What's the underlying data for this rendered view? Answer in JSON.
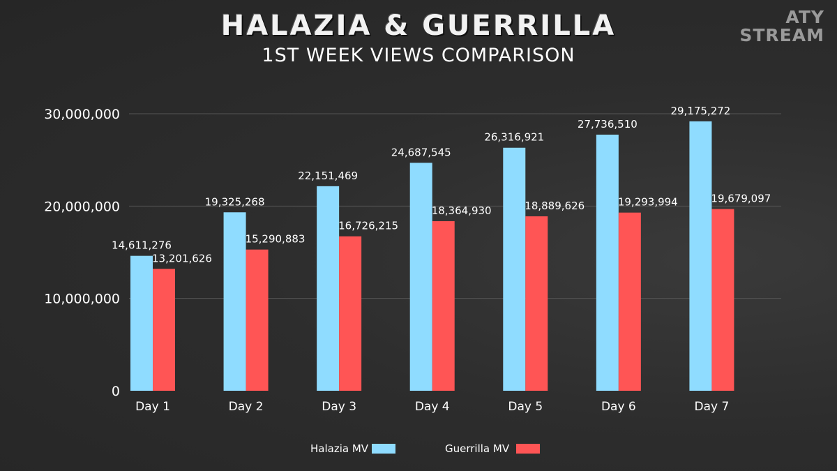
{
  "header": {
    "title": "HALAZIA & GUERRILLA",
    "subtitle": "1ST WEEK VIEWS COMPARISON"
  },
  "logo": {
    "line1": "ATY",
    "line2": "STREAM"
  },
  "colors": {
    "halazia": "#8fdcff",
    "guerrilla": "#ff5555",
    "grid": "#555555"
  },
  "chart_data": {
    "type": "bar",
    "categories": [
      "Day 1",
      "Day 2",
      "Day 3",
      "Day 4",
      "Day 5",
      "Day 6",
      "Day 7"
    ],
    "series": [
      {
        "name": "Halazia MV",
        "values": [
          14611276,
          19325268,
          22151469,
          24687545,
          26316921,
          27736510,
          29175272
        ],
        "labels": [
          "14,611,276",
          "19,325,268",
          "22,151,469",
          "24,687,545",
          "26,316,921",
          "27,736,510",
          "29,175,272"
        ]
      },
      {
        "name": "Guerrilla MV",
        "values": [
          13201626,
          15290883,
          16726215,
          18364930,
          18889626,
          19293994,
          19679097
        ],
        "labels": [
          "13,201,626",
          "15,290,883",
          "16,726,215",
          "18,364,930",
          "18,889,626",
          "19,293,994",
          "19,679,097"
        ]
      }
    ],
    "ylim": [
      0,
      30000000
    ],
    "yticks": [
      {
        "value": 0,
        "label": "0"
      },
      {
        "value": 10000000,
        "label": "10,000,000"
      },
      {
        "value": 20000000,
        "label": "20,000,000"
      },
      {
        "value": 30000000,
        "label": "30,000,000"
      }
    ],
    "grid": true,
    "legend_position": "bottom-center",
    "xlabel": "",
    "ylabel": ""
  }
}
